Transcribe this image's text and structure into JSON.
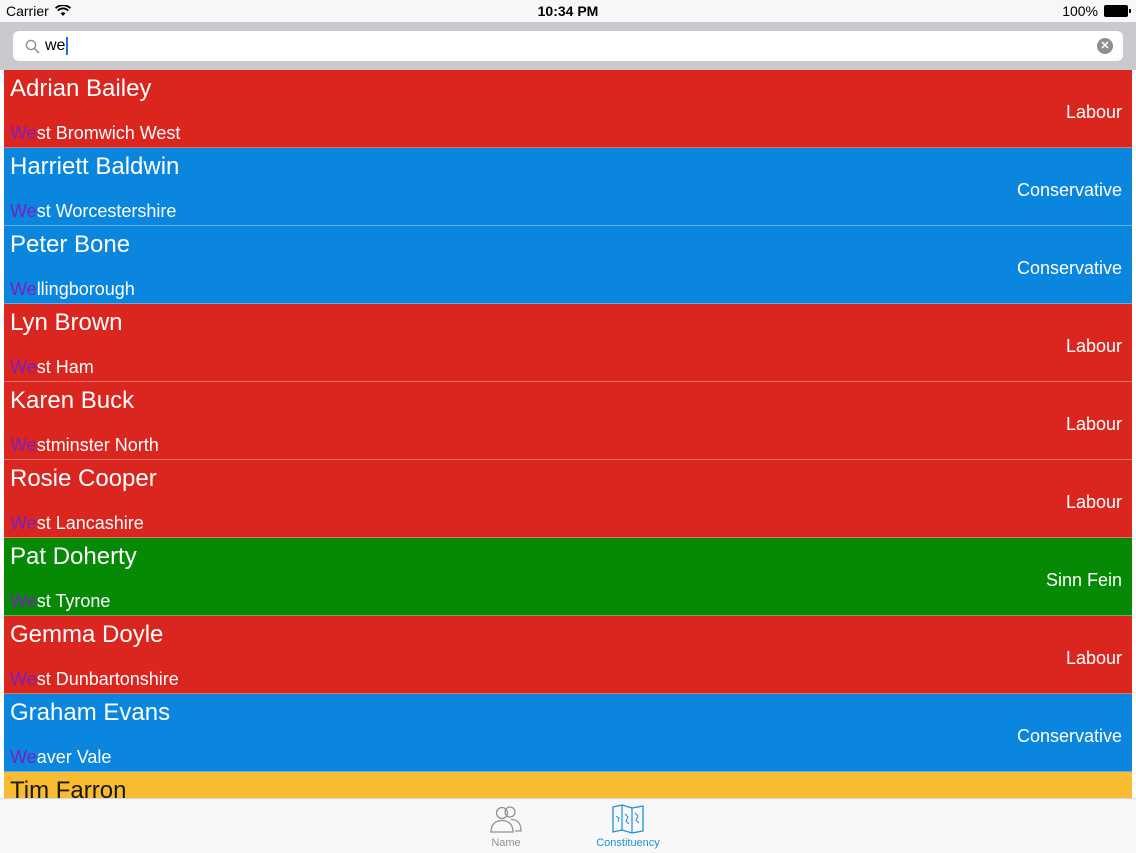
{
  "status_bar": {
    "carrier": "Carrier",
    "time": "10:34 PM",
    "battery": "100%"
  },
  "search": {
    "query": "we"
  },
  "colors": {
    "labour": "#db2620",
    "conservative": "#0b86df",
    "sinn_fein": "#068a06",
    "lib_dem": "#f9bb2f",
    "highlight": "#7a1fbf",
    "tab_active": "#1f8fd9"
  },
  "rows": [
    {
      "name": "Adrian Bailey",
      "party": "Labour",
      "match": "We",
      "rest": "st Bromwich West",
      "party_color": "#db2620"
    },
    {
      "name": "Harriett Baldwin",
      "party": "Conservative",
      "match": "We",
      "rest": "st Worcestershire",
      "party_color": "#0b86df"
    },
    {
      "name": "Peter Bone",
      "party": "Conservative",
      "match": "We",
      "rest": "llingborough",
      "party_color": "#0b86df"
    },
    {
      "name": "Lyn Brown",
      "party": "Labour",
      "match": "We",
      "rest": "st Ham",
      "party_color": "#db2620"
    },
    {
      "name": "Karen Buck",
      "party": "Labour",
      "match": "We",
      "rest": "stminster North",
      "party_color": "#db2620"
    },
    {
      "name": "Rosie Cooper",
      "party": "Labour",
      "match": "We",
      "rest": "st Lancashire",
      "party_color": "#db2620"
    },
    {
      "name": "Pat Doherty",
      "party": "Sinn Fein",
      "match": "We",
      "rest": "st Tyrone",
      "party_color": "#068a06"
    },
    {
      "name": "Gemma Doyle",
      "party": "Labour",
      "match": "We",
      "rest": "st Dunbartonshire",
      "party_color": "#db2620"
    },
    {
      "name": "Graham Evans",
      "party": "Conservative",
      "match": "We",
      "rest": "aver Vale",
      "party_color": "#0b86df"
    },
    {
      "name": "Tim Farron",
      "party": "",
      "match": "",
      "rest": "",
      "party_color": "#f9bb2f",
      "dark_text": true
    }
  ],
  "tabs": [
    {
      "label": "Name",
      "icon": "people-icon",
      "active": false
    },
    {
      "label": "Constituency",
      "icon": "map-icon",
      "active": true
    }
  ]
}
